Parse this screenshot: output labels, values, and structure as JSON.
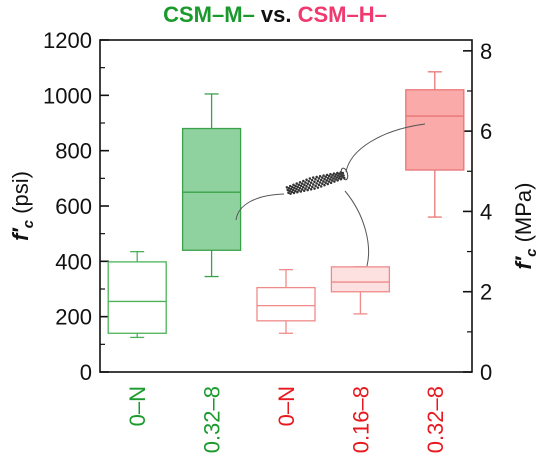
{
  "chart_data": {
    "type": "box",
    "title_parts": [
      "CSM–M–",
      " vs. ",
      "CSM–H–"
    ],
    "ylabel_left": {
      "main": "f′",
      "sub": "c",
      "unit": " (psi)"
    },
    "ylabel_right": {
      "main": "f′",
      "sub": "c",
      "unit": " (MPa)"
    },
    "ylim_left": [
      0,
      1200
    ],
    "ylim_right": [
      0,
      8.27
    ],
    "yticks_left": [
      "0",
      "200",
      "400",
      "600",
      "800",
      "1000",
      "1200"
    ],
    "yticks_right": [
      "0",
      "2",
      "4",
      "6",
      "8"
    ],
    "categories": [
      "0–N",
      "0.32–8",
      "0–N",
      "0.16–8",
      "0.32–8"
    ],
    "category_colors": [
      "#1a9a2c",
      "#1a9a2c",
      "#e8191e",
      "#e8191e",
      "#e8191e"
    ],
    "boxes": [
      {
        "group": "CSM-M",
        "q1": 140,
        "median": 255,
        "q3": 398,
        "min": 125,
        "max": 435,
        "stroke": "#4cb25a",
        "fill": "#ffffff"
      },
      {
        "group": "CSM-M",
        "q1": 440,
        "median": 650,
        "q3": 880,
        "min": 345,
        "max": 1005,
        "stroke": "#3aa14a",
        "fill": "#8fd2a0"
      },
      {
        "group": "CSM-H",
        "q1": 185,
        "median": 240,
        "q3": 305,
        "min": 140,
        "max": 370,
        "stroke": "#f08a8a",
        "fill": "#ffffff"
      },
      {
        "group": "CSM-H",
        "q1": 290,
        "median": 325,
        "q3": 380,
        "min": 210,
        "max": 380,
        "stroke": "#ee8a8a",
        "fill": "#fde0e0"
      },
      {
        "group": "CSM-H",
        "q1": 730,
        "median": 925,
        "q3": 1020,
        "min": 560,
        "max": 1085,
        "stroke": "#ea7575",
        "fill": "#fbaaaa"
      }
    ],
    "grid": false,
    "legend": "none",
    "annotation": "carbon-nanotube-graphic"
  }
}
